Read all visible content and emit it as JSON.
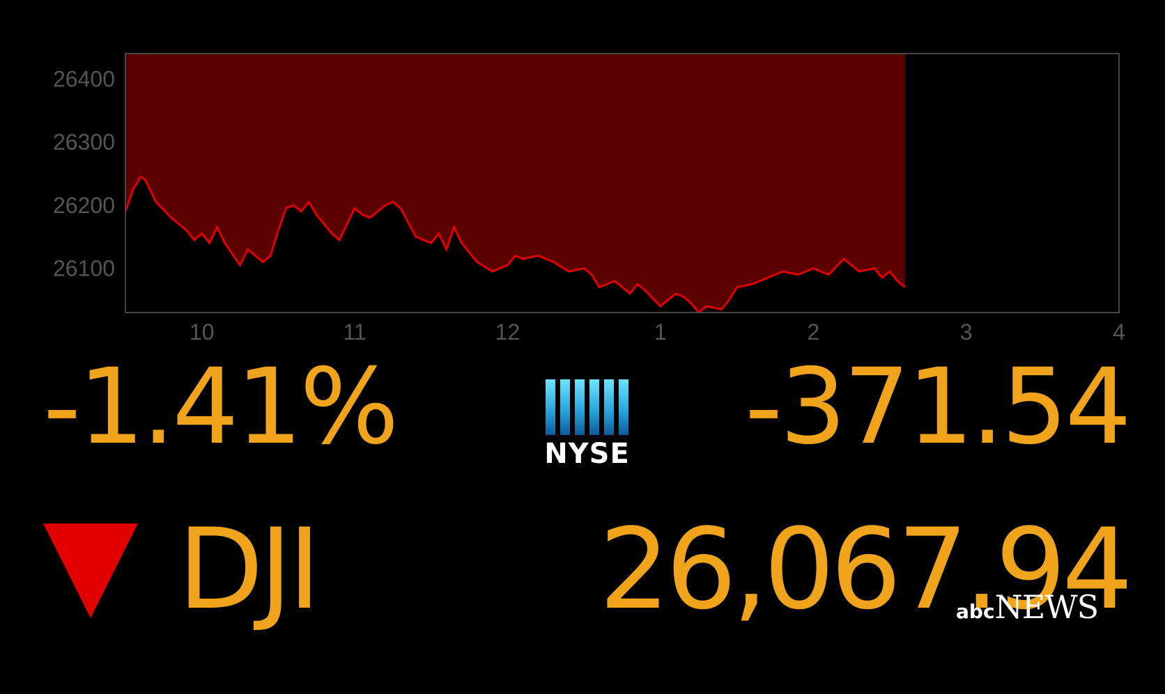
{
  "colors": {
    "accent": "#f0a41c",
    "fill": "#5a0000",
    "line": "#e00000",
    "axis": "#555555"
  },
  "chart_data": {
    "type": "area",
    "title": "",
    "xlabel": "",
    "ylabel": "",
    "x_ticks": [
      {
        "label": "10",
        "value": 10
      },
      {
        "label": "11",
        "value": 11
      },
      {
        "label": "12",
        "value": 12
      },
      {
        "label": "1",
        "value": 13
      },
      {
        "label": "2",
        "value": 14
      },
      {
        "label": "3",
        "value": 15
      },
      {
        "label": "4",
        "value": 16
      }
    ],
    "y_ticks": [
      26100,
      26200,
      26300,
      26400
    ],
    "xlim": [
      9.5,
      16
    ],
    "ylim": [
      26030,
      26440
    ],
    "grid": false,
    "series": [
      {
        "x": [
          9.5,
          9.55,
          9.6,
          9.63,
          9.7,
          9.8,
          9.9,
          9.95,
          10.0,
          10.05,
          10.1,
          10.15,
          10.25,
          10.3,
          10.4,
          10.45,
          10.5,
          10.55,
          10.6,
          10.65,
          10.7,
          10.75,
          10.85,
          10.9,
          10.95,
          11.0,
          11.05,
          11.1,
          11.2,
          11.25,
          11.3,
          11.4,
          11.5,
          11.55,
          11.6,
          11.65,
          11.7,
          11.75,
          11.8,
          11.9,
          12.0,
          12.05,
          12.1,
          12.2,
          12.3,
          12.4,
          12.5,
          12.55,
          12.6,
          12.7,
          12.8,
          12.85,
          12.9,
          13.0,
          13.1,
          13.15,
          13.2,
          13.25,
          13.3,
          13.4,
          13.45,
          13.5,
          13.6,
          13.65,
          13.7,
          13.8,
          13.9,
          14.0,
          14.1,
          14.2,
          14.25,
          14.3,
          14.4,
          14.45,
          14.5,
          14.55,
          14.6
        ],
        "y": [
          26190,
          26225,
          26245,
          26240,
          26205,
          26180,
          26160,
          26145,
          26155,
          26140,
          26165,
          26140,
          26105,
          26130,
          26110,
          26120,
          26160,
          26195,
          26200,
          26190,
          26205,
          26185,
          26155,
          26145,
          26170,
          26195,
          26185,
          26180,
          26200,
          26205,
          26195,
          26150,
          26140,
          26155,
          26130,
          26165,
          26140,
          26125,
          26110,
          26095,
          26105,
          26120,
          26115,
          26120,
          26110,
          26095,
          26100,
          26090,
          26070,
          26080,
          26060,
          26075,
          26065,
          26040,
          26060,
          26055,
          26045,
          26030,
          26040,
          26035,
          26050,
          26070,
          26075,
          26080,
          26085,
          26095,
          26090,
          26100,
          26090,
          26115,
          26105,
          26095,
          26100,
          26085,
          26095,
          26080,
          26070
        ]
      }
    ]
  },
  "ticker": {
    "percent_change": "-1.41%",
    "point_change": "-371.54",
    "index_name": "DJI",
    "index_value": "26,067.94"
  },
  "logos": {
    "exchange": "NYSE",
    "network_prefix": "abc",
    "network_name": "NEWS"
  }
}
